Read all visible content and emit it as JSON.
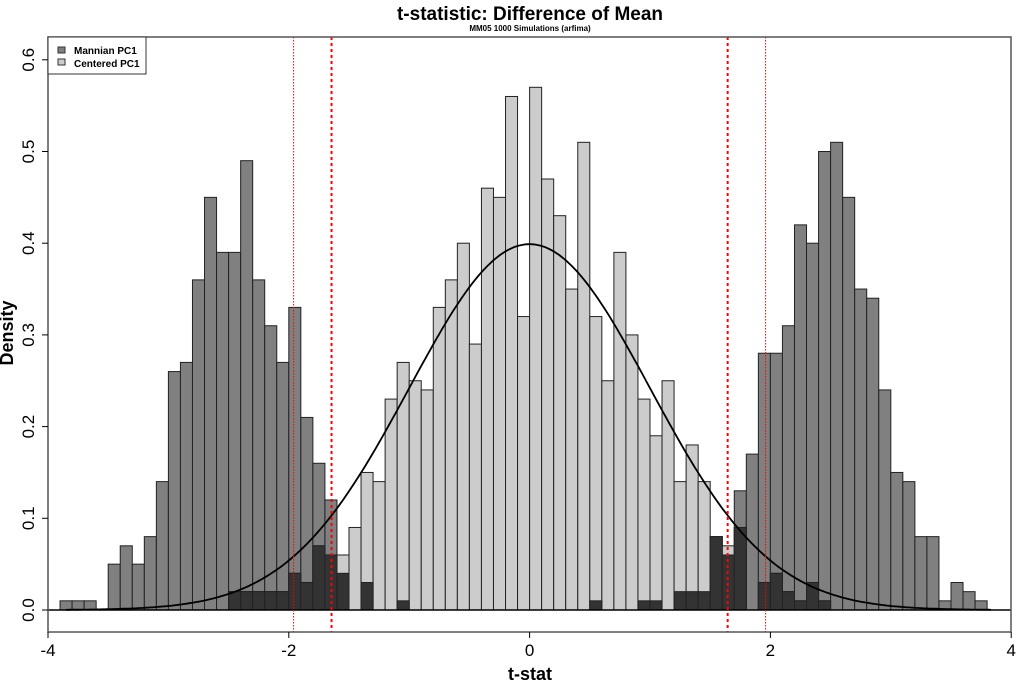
{
  "chart_data": {
    "type": "bar",
    "title": "t-statistic: Difference of Mean",
    "subtitle": "MM05 1000 Simulations (arfima)",
    "xlabel": "t-stat",
    "ylabel": "Density",
    "xlim": [
      -4,
      4
    ],
    "ylim": [
      0,
      0.6
    ],
    "x_ticks": [
      "-4",
      "-2",
      "0",
      "2",
      "4"
    ],
    "y_ticks": [
      "0.0",
      "0.1",
      "0.2",
      "0.3",
      "0.4",
      "0.5",
      "0.6"
    ],
    "legend_position": "top-left",
    "bin_start": -3.9,
    "bin_width": 0.1,
    "series": [
      {
        "name": "Mannian PC1",
        "color": "#808080",
        "density": [
          0.01,
          0.01,
          0.01,
          0,
          0.05,
          0.07,
          0.05,
          0.08,
          0.14,
          0.26,
          0.27,
          0.36,
          0.45,
          0.39,
          0.39,
          0.49,
          0.36,
          0.31,
          0.27,
          0.33,
          0.21,
          0.16,
          0.12,
          0.04,
          0,
          0.03,
          0,
          0,
          0.01,
          0,
          0,
          0,
          0,
          0,
          0,
          0,
          0,
          0,
          0,
          0,
          0,
          0,
          0,
          0,
          0.01,
          0,
          0,
          0,
          0.01,
          0.01,
          0,
          0.02,
          0.02,
          0.02,
          0.08,
          0.06,
          0.13,
          0.17,
          0.28,
          0.28,
          0.31,
          0.42,
          0.4,
          0.5,
          0.51,
          0.45,
          0.35,
          0.34,
          0.24,
          0.15,
          0.14,
          0.08,
          0.08,
          0.01,
          0.03,
          0.02,
          0.01
        ]
      },
      {
        "name": "Centered PC1",
        "color": "#cccccc",
        "density": [
          0,
          0,
          0,
          0,
          0,
          0,
          0,
          0,
          0,
          0,
          0,
          0,
          0,
          0,
          0.02,
          0.02,
          0.02,
          0.02,
          0.02,
          0.04,
          0.03,
          0.07,
          0.06,
          0.06,
          0.09,
          0.15,
          0.14,
          0.23,
          0.27,
          0.25,
          0.24,
          0.33,
          0.36,
          0.4,
          0.29,
          0.46,
          0.45,
          0.56,
          0.32,
          0.57,
          0.47,
          0.43,
          0.35,
          0.51,
          0.32,
          0.25,
          0.39,
          0.3,
          0.23,
          0.19,
          0.25,
          0.14,
          0.18,
          0.14,
          0.08,
          0.07,
          0.09,
          0,
          0.03,
          0.04,
          0.02,
          0.01,
          0.03,
          0.01,
          0,
          0,
          0,
          0,
          0,
          0,
          0,
          0,
          0,
          0,
          0,
          0,
          0
        ]
      }
    ],
    "overlap_color": "#333333",
    "reference_curve": {
      "type": "standard normal density",
      "color": "#000000"
    },
    "vertical_lines": [
      {
        "x": -1.96,
        "color": "#ff0000",
        "style": "thin dotted"
      },
      {
        "x": -1.645,
        "color": "#ff0000",
        "style": "thick dotted"
      },
      {
        "x": 1.645,
        "color": "#ff0000",
        "style": "thick dotted"
      },
      {
        "x": 1.96,
        "color": "#ff0000",
        "style": "thin dotted"
      }
    ],
    "grid": false
  }
}
